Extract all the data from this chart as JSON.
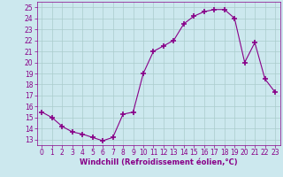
{
  "x": [
    0,
    1,
    2,
    3,
    4,
    5,
    6,
    7,
    8,
    9,
    10,
    11,
    12,
    13,
    14,
    15,
    16,
    17,
    18,
    19,
    20,
    21,
    22,
    23
  ],
  "y": [
    15.5,
    15.0,
    14.2,
    13.7,
    13.5,
    13.2,
    12.9,
    13.2,
    15.3,
    15.5,
    19.0,
    21.0,
    21.5,
    22.0,
    23.5,
    24.2,
    24.6,
    24.8,
    24.8,
    24.0,
    20.0,
    21.8,
    18.5,
    17.3
  ],
  "line_color": "#880088",
  "marker": "+",
  "marker_size": 4,
  "marker_lw": 1.2,
  "bg_color": "#cce8ee",
  "grid_color": "#aacccc",
  "xlabel": "Windchill (Refroidissement éolien,°C)",
  "xlabel_color": "#880088",
  "xlabel_fontsize": 6.0,
  "tick_color": "#880088",
  "tick_fontsize": 5.5,
  "xlim": [
    -0.5,
    23.5
  ],
  "ylim": [
    12.5,
    25.5
  ],
  "yticks": [
    13,
    14,
    15,
    16,
    17,
    18,
    19,
    20,
    21,
    22,
    23,
    24,
    25
  ],
  "xticks": [
    0,
    1,
    2,
    3,
    4,
    5,
    6,
    7,
    8,
    9,
    10,
    11,
    12,
    13,
    14,
    15,
    16,
    17,
    18,
    19,
    20,
    21,
    22,
    23
  ]
}
